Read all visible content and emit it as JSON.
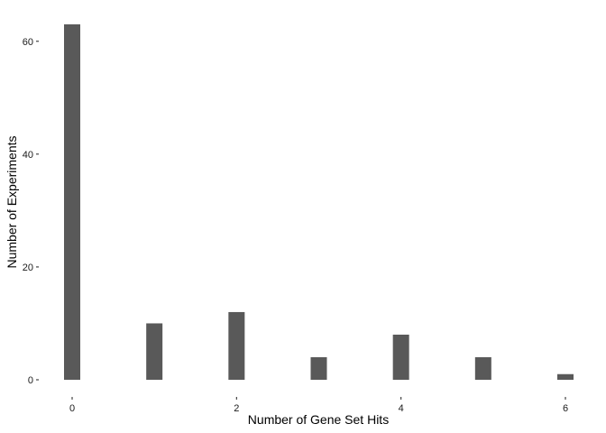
{
  "chart_data": {
    "type": "bar",
    "title": "",
    "xlabel": "Number of Gene Set Hits",
    "ylabel": "Number of Experiments",
    "x": [
      0,
      1,
      2,
      3,
      4,
      5,
      6
    ],
    "values": [
      63,
      10,
      12,
      4,
      8,
      4,
      1
    ],
    "bar_color": "#595959",
    "xlim": [
      0,
      6
    ],
    "ylim": [
      0,
      63
    ],
    "xticks": [
      0,
      2,
      4,
      6
    ],
    "xtick_labels": [
      "0",
      "2",
      "4",
      "6"
    ],
    "yticks": [
      0,
      20,
      40,
      60
    ],
    "ytick_labels": [
      "0",
      "20",
      "40",
      "60"
    ],
    "grid": false,
    "legend": "none"
  }
}
